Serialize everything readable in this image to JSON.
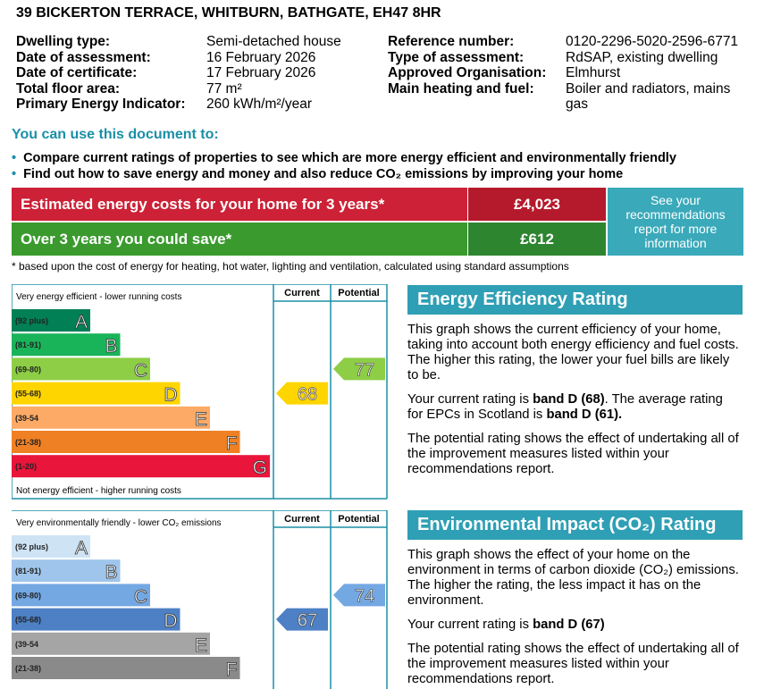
{
  "address": "39 BICKERTON TERRACE, WHITBURN, BATHGATE, EH47 8HR",
  "details_left": [
    {
      "label": "Dwelling type:",
      "value": "Semi-detached house"
    },
    {
      "label": "Date of assessment:",
      "value": "16 February 2026"
    },
    {
      "label": "Date of certificate:",
      "value": "17 February 2026"
    },
    {
      "label": "Total floor area:",
      "value": "77 m²"
    },
    {
      "label": "Primary Energy Indicator:",
      "value": "260 kWh/m²/year"
    }
  ],
  "details_right": [
    {
      "label": "Reference number:",
      "value": "0120-2296-5020-2596-6771"
    },
    {
      "label": "Type of assessment:",
      "value": "RdSAP, existing dwelling"
    },
    {
      "label": "Approved Organisation:",
      "value": "Elmhurst"
    },
    {
      "label": "Main heating and fuel:",
      "value": "Boiler and radiators, mains gas"
    }
  ],
  "uses": {
    "heading": "You can use this document to:",
    "bullets": [
      "Compare current ratings of properties to see which are more energy efficient and environmentally friendly",
      "Find out how to save energy and money and also reduce CO₂ emissions by improving your home"
    ]
  },
  "costs": {
    "rows": [
      {
        "label": "Estimated energy costs for your home for 3 years*",
        "value": "£4,023"
      },
      {
        "label": "Over 3 years you could save*",
        "value": "£612"
      }
    ],
    "button": "See your recommendations report for more information",
    "footnote": "* based upon the cost of energy for heating, hot water, lighting and ventilation, calculated using standard assumptions"
  },
  "energy_chart": {
    "top_label": "Very energy efficient - lower running costs",
    "bottom_label": "Not energy efficient - higher running costs",
    "columns": [
      "Current",
      "Potential"
    ],
    "bands": [
      {
        "range": "(92 plus)",
        "letter": "A",
        "color": "#008054"
      },
      {
        "range": "(81-91)",
        "letter": "B",
        "color": "#19b459"
      },
      {
        "range": "(69-80)",
        "letter": "C",
        "color": "#8dce46"
      },
      {
        "range": "(55-68)",
        "letter": "D",
        "color": "#ffd500"
      },
      {
        "range": "(39-54",
        "letter": "E",
        "color": "#fcaa65"
      },
      {
        "range": "(21-38)",
        "letter": "F",
        "color": "#ef8023"
      },
      {
        "range": "(1-20)",
        "letter": "G",
        "color": "#e9153b"
      }
    ],
    "current": 68,
    "potential": 77
  },
  "energy_panel": {
    "heading": "Energy Efficiency Rating",
    "paragraphs": [
      [
        {
          "text": "This graph shows the current efficiency of your home, taking into account both energy efficiency and fuel costs. The higher this rating, the lower your fuel bills are likely to be."
        }
      ],
      [
        {
          "text": "Your current rating is "
        },
        {
          "text": "band D (68)",
          "bold": true
        },
        {
          "text": ". The average rating for EPCs in Scotland is "
        },
        {
          "text": "band D (61).",
          "bold": true
        }
      ],
      [
        {
          "text": "The potential rating shows the effect of undertaking all of the improvement measures listed within your recommendations report."
        }
      ]
    ]
  },
  "env_chart": {
    "top_label": "Very environmentally friendly - lower CO₂ emissions",
    "columns": [
      "Current",
      "Potential"
    ],
    "bands": [
      {
        "range": "(92 plus)",
        "letter": "A",
        "color": "#cee4f5"
      },
      {
        "range": "(81-91)",
        "letter": "B",
        "color": "#9fc5ec"
      },
      {
        "range": "(69-80)",
        "letter": "C",
        "color": "#74a8e3"
      },
      {
        "range": "(55-68)",
        "letter": "D",
        "color": "#4d80c4"
      },
      {
        "range": "(39-54",
        "letter": "E",
        "color": "#a5a5a5"
      },
      {
        "range": "(21-38)",
        "letter": "F",
        "color": "#8a8a8a"
      }
    ],
    "current": 67,
    "potential": 74
  },
  "env_panel": {
    "heading": "Environmental Impact (CO₂) Rating",
    "paragraphs": [
      [
        {
          "text": "This graph shows the effect of your home on the environment in terms of carbon dioxide (CO₂) emissions. The higher the rating, the less impact it has on the environment."
        }
      ],
      [
        {
          "text": "Your current rating is "
        },
        {
          "text": "band D (67)",
          "bold": true
        }
      ],
      [
        {
          "text": "The potential rating shows the effect of undertaking all of the improvement measures listed within your recommendations report."
        }
      ]
    ]
  }
}
